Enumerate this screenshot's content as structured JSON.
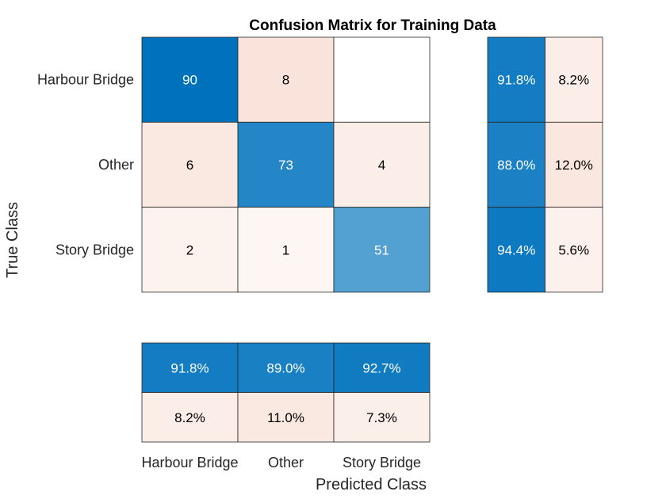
{
  "chart_data": {
    "type": "heatmap",
    "title": "Confusion Matrix for Training Data",
    "xlabel": "Predicted Class",
    "ylabel": "True Class",
    "classes": [
      "Harbour Bridge",
      "Other",
      "Story Bridge"
    ],
    "matrix": [
      [
        90,
        8,
        null
      ],
      [
        6,
        73,
        4
      ],
      [
        2,
        1,
        51
      ]
    ],
    "row_summary": [
      [
        "91.8%",
        "8.2%"
      ],
      [
        "88.0%",
        "12.0%"
      ],
      [
        "94.4%",
        "5.6%"
      ]
    ],
    "column_summary": [
      [
        "91.8%",
        "89.0%",
        "92.7%"
      ],
      [
        "8.2%",
        "11.0%",
        "7.3%"
      ]
    ],
    "colors": {
      "correct": "#0072BD",
      "incorrect": "#D95319",
      "light_text": "#FFFFFF",
      "dark_text": "#000000"
    }
  }
}
